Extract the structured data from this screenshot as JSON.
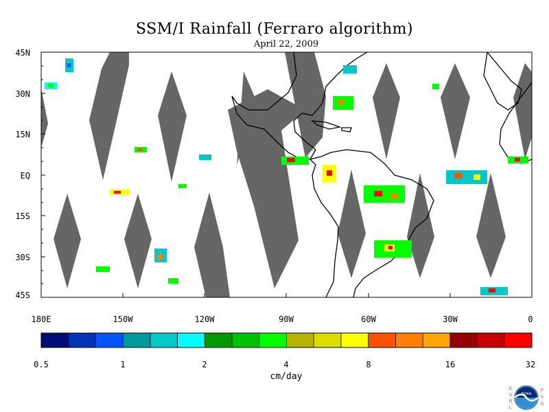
{
  "title": "SSM/I Rainfall (Ferraro algorithm)",
  "date": "April 22, 2009",
  "lat_labels": [
    "45N",
    "30N",
    "15N",
    "EQ",
    "15S",
    "30S",
    "45S"
  ],
  "lon_labels": [
    "180E",
    "150W",
    "120W",
    "90W",
    "60W",
    "30W",
    "0"
  ],
  "colorbar": {
    "units": "cm/day",
    "tick_labels": [
      "0.5",
      "1",
      "2",
      "4",
      "8",
      "16",
      "32"
    ],
    "colors": [
      "#000d78",
      "#0033b4",
      "#0055ff",
      "#009999",
      "#00c8c8",
      "#00ffff",
      "#009900",
      "#00c300",
      "#00ff00",
      "#b4b400",
      "#dcdc00",
      "#ffff00",
      "#ff5000",
      "#ff8000",
      "#ffa500",
      "#960000",
      "#c80000",
      "#ff0000"
    ]
  },
  "map_extent": {
    "lon_min": -180,
    "lon_max": 0,
    "lat_min": -45,
    "lat_max": 45
  },
  "no_data_color": "#666666",
  "logo": {
    "left_text": "ESRL",
    "right_text": "PSD",
    "center_text": "NOAA"
  }
}
